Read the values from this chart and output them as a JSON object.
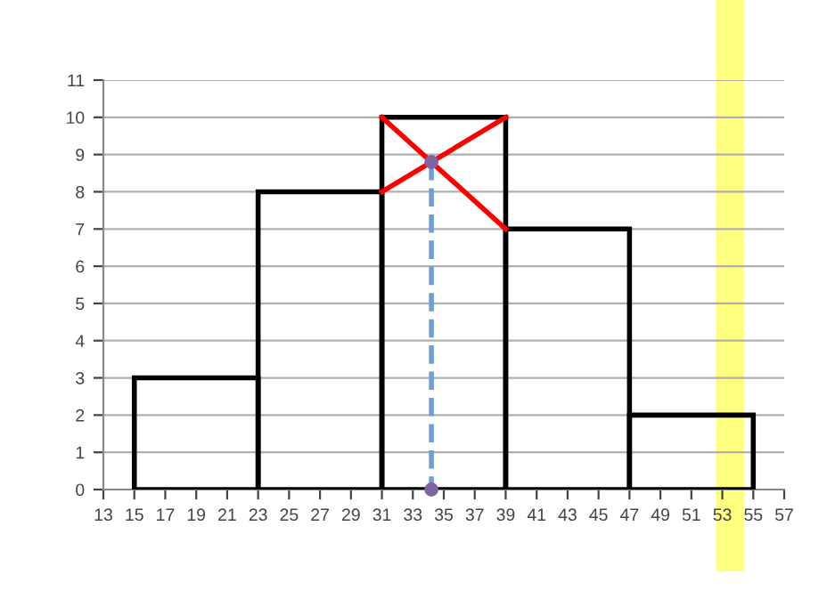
{
  "chart_data": {
    "type": "histogram",
    "bins": [
      15,
      23,
      31,
      39,
      47,
      55
    ],
    "values": [
      3,
      8,
      10,
      7,
      2
    ],
    "color": "#000000",
    "xlim": [
      13,
      57
    ],
    "xticks": [
      13,
      15,
      17,
      19,
      21,
      23,
      25,
      27,
      29,
      31,
      33,
      35,
      37,
      39,
      41,
      43,
      45,
      47,
      49,
      51,
      53,
      55,
      57
    ],
    "ylim": [
      0,
      11
    ],
    "yticks": [
      0,
      1,
      2,
      3,
      4,
      5,
      6,
      7,
      8,
      9,
      10,
      11
    ],
    "grid": "y",
    "series": [
      {
        "type": "line",
        "color": "#ff0000",
        "x": [
          31,
          39
        ],
        "values": [
          10,
          7
        ]
      },
      {
        "type": "line",
        "color": "#ff0000",
        "x": [
          31,
          39
        ],
        "values": [
          8,
          10
        ]
      },
      {
        "type": "line",
        "color": "#6f9fd8",
        "x": [
          34.2,
          34.2
        ],
        "values": [
          8.8,
          0
        ],
        "line_style": "dashed"
      },
      {
        "type": "scatter",
        "color": "#8064a2",
        "x": [
          34.2,
          34.2
        ],
        "values": [
          8.8,
          0
        ],
        "marker": "circle"
      }
    ],
    "bands": [
      {
        "axis": "x",
        "from": 52.6,
        "to": 54.4,
        "color": "#ffff80"
      }
    ]
  }
}
